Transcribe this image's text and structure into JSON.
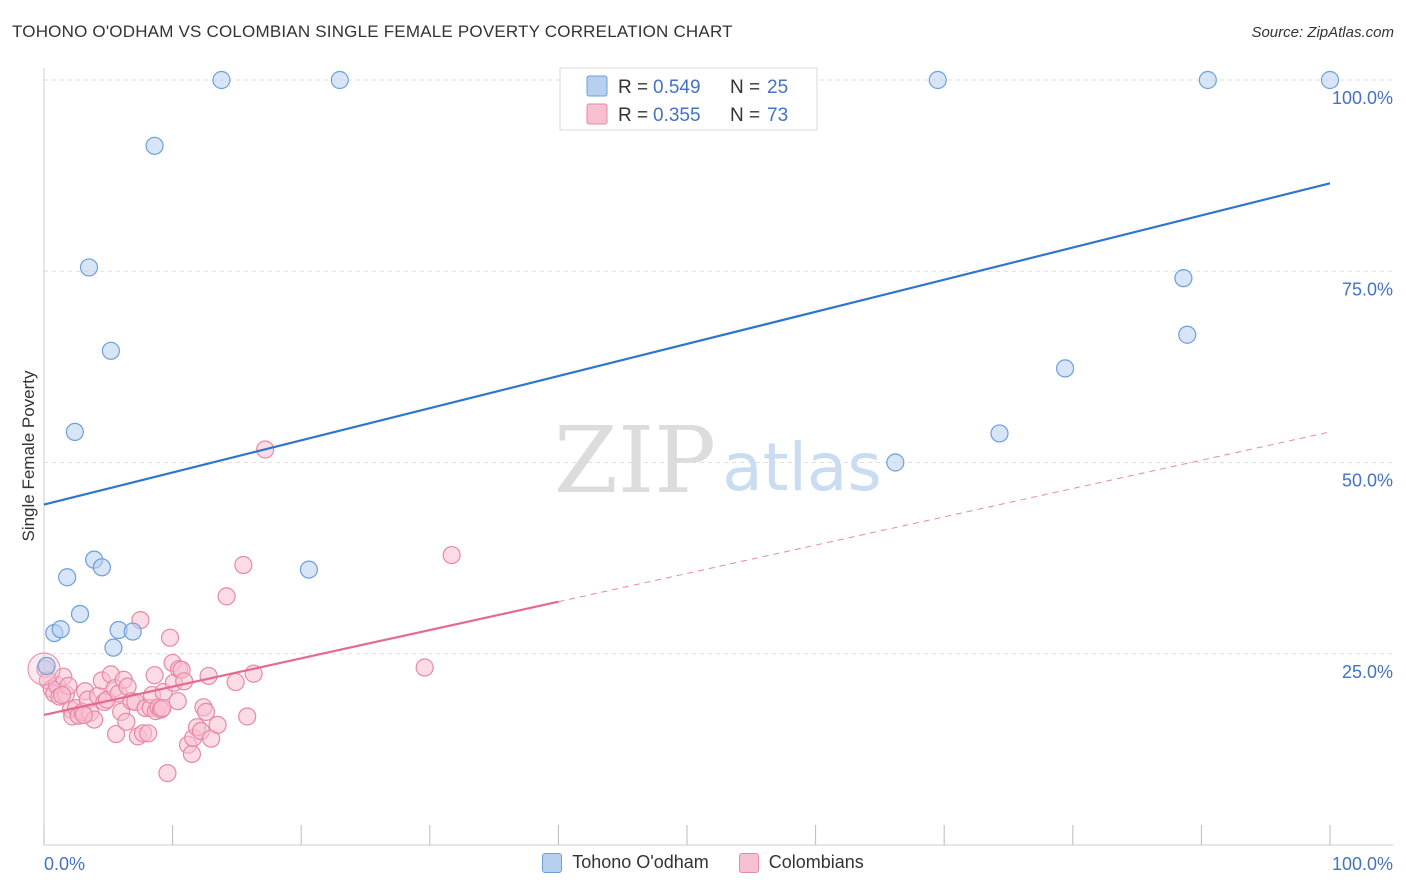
{
  "header": {
    "title": "TOHONO O'ODHAM VS COLOMBIAN SINGLE FEMALE POVERTY CORRELATION CHART",
    "source": "Source: ZipAtlas.com"
  },
  "watermark": {
    "zip": "ZIP",
    "atlas": "atlas"
  },
  "colors": {
    "blue_fill": "#b7d0f0",
    "blue_stroke": "#6d9fd8",
    "blue_line": "#2f76c9",
    "pink_fill": "#f7c0d0",
    "pink_stroke": "#e888a6",
    "pink_line": "#e46a91",
    "tick_text": "#4472c4",
    "grid": "#dddddd"
  },
  "legend": {
    "rows": [
      {
        "r_label": "R =",
        "r_value": "0.549",
        "n_label": "N =",
        "n_value": "25"
      },
      {
        "r_label": "R =",
        "r_value": "0.355",
        "n_label": "N =",
        "n_value": "73"
      }
    ]
  },
  "bottom_legend": {
    "items": [
      {
        "label": "Tohono O'odham"
      },
      {
        "label": "Colombians"
      }
    ]
  },
  "chart_data": {
    "type": "scatter",
    "ylabel": "Single Female Poverty",
    "xlim": [
      0,
      100
    ],
    "ylim": [
      0,
      100
    ],
    "x_tick_labels": [
      "0.0%",
      "100.0%"
    ],
    "y_ticks": [
      25,
      50,
      75,
      100
    ],
    "y_tick_labels": [
      "25.0%",
      "50.0%",
      "75.0%",
      "100.0%"
    ],
    "grid": true,
    "legend_position": "top-center",
    "series": [
      {
        "name": "Tohono O'odham",
        "color": "blue",
        "r": 0.549,
        "n": 25,
        "trend": {
          "x": [
            0,
            100
          ],
          "y": [
            44.5,
            86.5
          ],
          "dashed_from": null
        },
        "points": [
          [
            0.2,
            23.4
          ],
          [
            0.8,
            27.7
          ],
          [
            1.3,
            28.2
          ],
          [
            1.8,
            35.0
          ],
          [
            2.4,
            54.0
          ],
          [
            2.8,
            30.2
          ],
          [
            3.5,
            75.5
          ],
          [
            3.9,
            37.3
          ],
          [
            4.5,
            36.3
          ],
          [
            5.2,
            64.6
          ],
          [
            5.4,
            25.8
          ],
          [
            5.8,
            28.1
          ],
          [
            6.9,
            27.9
          ],
          [
            8.6,
            91.4
          ],
          [
            13.8,
            100.0
          ],
          [
            20.6,
            36.0
          ],
          [
            23.0,
            100.0
          ],
          [
            66.2,
            50.0
          ],
          [
            69.5,
            100.0
          ],
          [
            74.3,
            53.8
          ],
          [
            79.4,
            62.3
          ],
          [
            88.6,
            74.1
          ],
          [
            88.9,
            66.7
          ],
          [
            90.5,
            100.0
          ],
          [
            100.0,
            100.0
          ]
        ]
      },
      {
        "name": "Colombians",
        "color": "pink",
        "r": 0.355,
        "n": 73,
        "trend": {
          "x": [
            0,
            100
          ],
          "y": [
            17.0,
            54.0
          ],
          "dashed_from": 40
        },
        "points": [
          [
            0.1,
            23.0
          ],
          [
            0.3,
            21.5
          ],
          [
            0.6,
            20.4
          ],
          [
            0.8,
            19.8
          ],
          [
            1.0,
            20.9
          ],
          [
            1.2,
            19.4
          ],
          [
            1.5,
            22.0
          ],
          [
            1.7,
            19.7
          ],
          [
            1.9,
            20.8
          ],
          [
            2.1,
            17.7
          ],
          [
            2.2,
            16.8
          ],
          [
            2.5,
            17.9
          ],
          [
            2.7,
            16.9
          ],
          [
            3.0,
            17.4
          ],
          [
            3.2,
            20.1
          ],
          [
            3.4,
            19.0
          ],
          [
            3.6,
            17.3
          ],
          [
            3.9,
            16.4
          ],
          [
            4.2,
            19.5
          ],
          [
            4.5,
            21.5
          ],
          [
            4.7,
            18.7
          ],
          [
            4.9,
            19.0
          ],
          [
            5.2,
            22.3
          ],
          [
            5.5,
            20.5
          ],
          [
            5.6,
            14.5
          ],
          [
            5.8,
            19.8
          ],
          [
            6.0,
            17.4
          ],
          [
            6.2,
            21.6
          ],
          [
            6.4,
            16.1
          ],
          [
            6.5,
            20.7
          ],
          [
            6.8,
            18.8
          ],
          [
            7.1,
            18.7
          ],
          [
            7.3,
            14.2
          ],
          [
            7.5,
            29.4
          ],
          [
            7.7,
            14.6
          ],
          [
            7.9,
            17.9
          ],
          [
            8.1,
            14.6
          ],
          [
            8.3,
            17.9
          ],
          [
            8.4,
            19.6
          ],
          [
            8.6,
            22.2
          ],
          [
            8.7,
            17.5
          ],
          [
            8.9,
            18.0
          ],
          [
            9.1,
            17.7
          ],
          [
            9.3,
            20.0
          ],
          [
            9.6,
            9.4
          ],
          [
            9.8,
            27.1
          ],
          [
            10.0,
            23.8
          ],
          [
            10.1,
            21.2
          ],
          [
            10.4,
            18.8
          ],
          [
            10.5,
            23.0
          ],
          [
            10.7,
            22.9
          ],
          [
            10.9,
            21.4
          ],
          [
            11.2,
            13.1
          ],
          [
            11.5,
            11.9
          ],
          [
            11.6,
            14.0
          ],
          [
            11.9,
            15.4
          ],
          [
            12.2,
            14.9
          ],
          [
            12.4,
            18.0
          ],
          [
            12.6,
            17.4
          ],
          [
            12.8,
            22.1
          ],
          [
            13.0,
            13.9
          ],
          [
            13.5,
            15.7
          ],
          [
            14.2,
            32.5
          ],
          [
            14.9,
            21.3
          ],
          [
            15.5,
            36.6
          ],
          [
            15.8,
            16.8
          ],
          [
            16.3,
            22.4
          ],
          [
            17.2,
            51.7
          ],
          [
            29.6,
            23.2
          ],
          [
            31.7,
            37.9
          ],
          [
            1.4,
            19.6
          ],
          [
            3.1,
            17.0
          ],
          [
            9.2,
            17.9
          ]
        ]
      }
    ]
  }
}
